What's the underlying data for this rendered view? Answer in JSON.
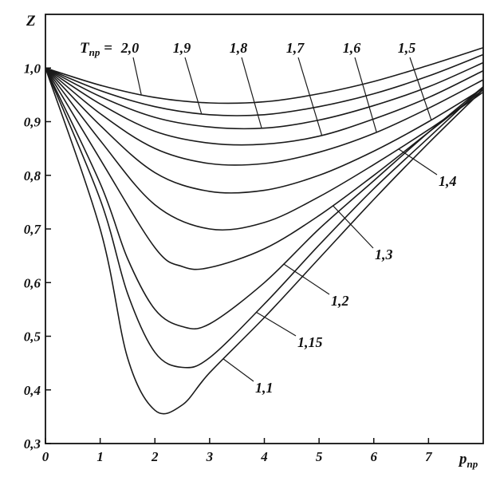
{
  "chart_data": {
    "type": "line",
    "xlabel": "p",
    "xlabel_sub": "пр",
    "ylabel": "Z",
    "xlim": [
      0,
      8
    ],
    "ylim": [
      0.3,
      1.1
    ],
    "x_ticks": [
      "0",
      "1",
      "2",
      "3",
      "4",
      "5",
      "6",
      "7"
    ],
    "y_ticks": [
      "0,3",
      "0,4",
      "0,5",
      "0,6",
      "0,7",
      "0,8",
      "0,9",
      "1,0"
    ],
    "legend_prefix_main": "T",
    "legend_prefix_sub": "пр",
    "legend_prefix_eq": " =",
    "grid": false,
    "series": [
      {
        "name": "2,0",
        "points": [
          [
            0,
            1.0
          ],
          [
            1,
            0.968
          ],
          [
            2,
            0.945
          ],
          [
            3,
            0.935
          ],
          [
            4,
            0.937
          ],
          [
            5,
            0.952
          ],
          [
            6,
            0.975
          ],
          [
            7,
            1.005
          ],
          [
            8,
            1.038
          ]
        ]
      },
      {
        "name": "1,9",
        "points": [
          [
            0,
            1.0
          ],
          [
            1,
            0.958
          ],
          [
            2,
            0.928
          ],
          [
            3,
            0.913
          ],
          [
            4,
            0.913
          ],
          [
            5,
            0.928
          ],
          [
            6,
            0.952
          ],
          [
            7,
            0.985
          ],
          [
            8,
            1.025
          ]
        ]
      },
      {
        "name": "1,8",
        "points": [
          [
            0,
            1.0
          ],
          [
            1,
            0.947
          ],
          [
            2,
            0.908
          ],
          [
            3,
            0.89
          ],
          [
            4,
            0.888
          ],
          [
            5,
            0.903
          ],
          [
            6,
            0.93
          ],
          [
            7,
            0.965
          ],
          [
            8,
            1.01
          ]
        ]
      },
      {
        "name": "1,7",
        "points": [
          [
            0,
            1.0
          ],
          [
            1,
            0.933
          ],
          [
            2,
            0.882
          ],
          [
            3,
            0.86
          ],
          [
            4,
            0.858
          ],
          [
            5,
            0.873
          ],
          [
            6,
            0.905
          ],
          [
            7,
            0.945
          ],
          [
            8,
            0.995
          ]
        ]
      },
      {
        "name": "1,6",
        "points": [
          [
            0,
            1.0
          ],
          [
            1,
            0.915
          ],
          [
            2,
            0.85
          ],
          [
            3,
            0.822
          ],
          [
            4,
            0.822
          ],
          [
            5,
            0.843
          ],
          [
            6,
            0.878
          ],
          [
            7,
            0.925
          ],
          [
            8,
            0.978
          ]
        ]
      },
      {
        "name": "1,5",
        "points": [
          [
            0,
            1.0
          ],
          [
            1,
            0.893
          ],
          [
            2,
            0.805
          ],
          [
            3,
            0.77
          ],
          [
            4,
            0.772
          ],
          [
            5,
            0.8
          ],
          [
            6,
            0.845
          ],
          [
            7,
            0.9
          ],
          [
            8,
            0.962
          ]
        ]
      },
      {
        "name": "1,4",
        "points": [
          [
            0,
            1.0
          ],
          [
            1,
            0.865
          ],
          [
            2,
            0.745
          ],
          [
            3,
            0.7
          ],
          [
            4,
            0.712
          ],
          [
            5,
            0.76
          ],
          [
            6,
            0.82
          ],
          [
            7,
            0.885
          ],
          [
            8,
            0.955
          ]
        ]
      },
      {
        "name": "1,3",
        "points": [
          [
            0,
            1.0
          ],
          [
            1,
            0.83
          ],
          [
            2,
            0.665
          ],
          [
            2.5,
            0.63
          ],
          [
            3,
            0.628
          ],
          [
            4,
            0.663
          ],
          [
            5,
            0.725
          ],
          [
            6,
            0.8
          ],
          [
            7,
            0.88
          ],
          [
            8,
            0.96
          ]
        ]
      },
      {
        "name": "1,2",
        "points": [
          [
            0,
            1.0
          ],
          [
            1,
            0.785
          ],
          [
            1.5,
            0.645
          ],
          [
            2,
            0.55
          ],
          [
            2.5,
            0.518
          ],
          [
            3,
            0.523
          ],
          [
            4,
            0.6
          ],
          [
            5,
            0.7
          ],
          [
            6,
            0.79
          ],
          [
            7,
            0.88
          ],
          [
            8,
            0.965
          ]
        ]
      },
      {
        "name": "1,15",
        "points": [
          [
            0,
            1.0
          ],
          [
            1,
            0.755
          ],
          [
            1.5,
            0.58
          ],
          [
            2,
            0.47
          ],
          [
            2.5,
            0.442
          ],
          [
            3,
            0.46
          ],
          [
            4,
            0.56
          ],
          [
            5,
            0.67
          ],
          [
            6,
            0.775
          ],
          [
            7,
            0.87
          ],
          [
            8,
            0.965
          ]
        ]
      },
      {
        "name": "1,1",
        "points": [
          [
            0,
            1.0
          ],
          [
            1,
            0.7
          ],
          [
            1.5,
            0.46
          ],
          [
            2,
            0.362
          ],
          [
            2.5,
            0.372
          ],
          [
            3,
            0.432
          ],
          [
            4,
            0.535
          ],
          [
            5,
            0.645
          ],
          [
            6,
            0.755
          ],
          [
            7,
            0.86
          ],
          [
            8,
            0.96
          ]
        ]
      }
    ]
  }
}
